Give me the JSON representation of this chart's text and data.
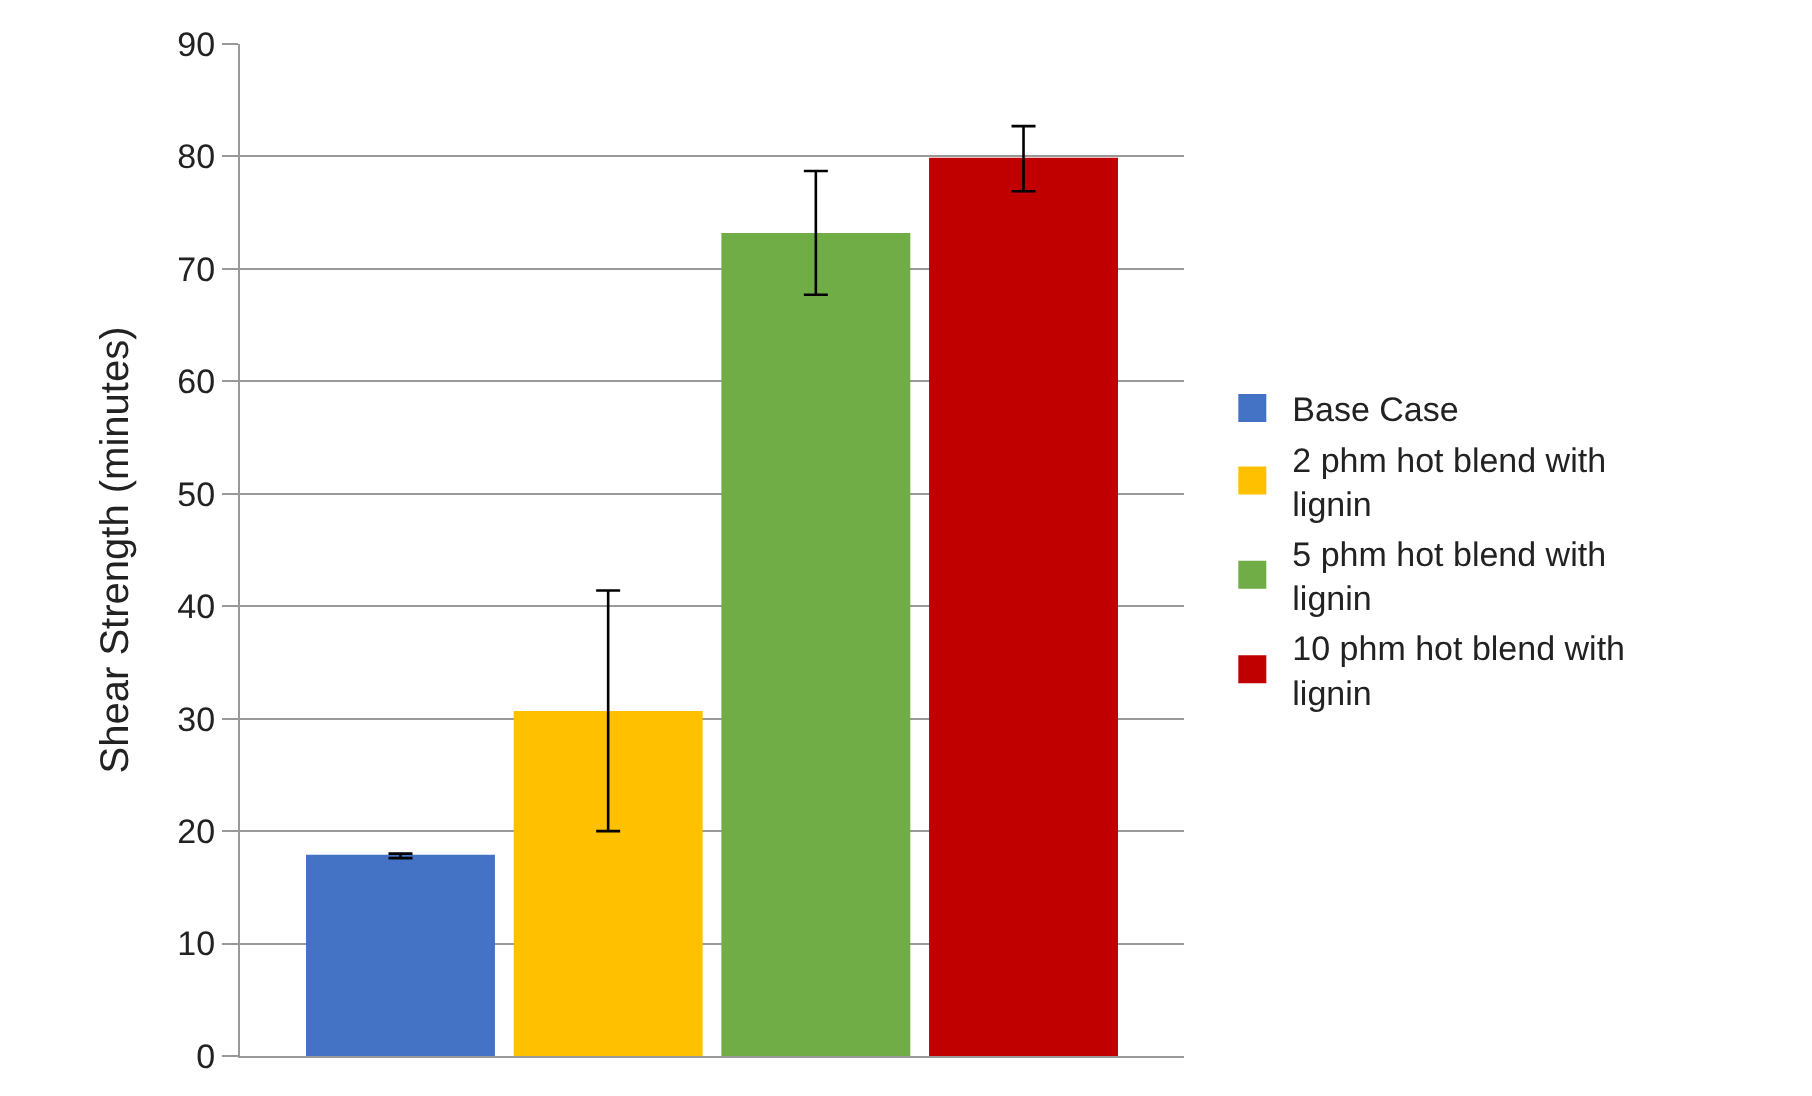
{
  "chart_data": {
    "type": "bar",
    "ylabel": "Shear Strength (minutes)",
    "categories": [
      null
    ],
    "series": [
      {
        "name": "Base Case",
        "color": "#4472c4",
        "values": [
          17.8
        ],
        "errors": [
          0.2
        ]
      },
      {
        "name": "2 phm hot blend with lignin",
        "color": "#ffc000",
        "values": [
          30.6
        ],
        "errors": [
          [
            20.0,
            41.4
          ]
        ]
      },
      {
        "name": "5 phm hot blend with lignin",
        "color": "#70ad47",
        "values": [
          73.1
        ],
        "errors": [
          [
            67.7,
            78.7
          ]
        ]
      },
      {
        "name": "10 phm hot blend with lignin",
        "color": "#c00000",
        "values": [
          79.8
        ],
        "errors": [
          [
            76.9,
            82.7
          ]
        ]
      }
    ],
    "ylim": [
      0,
      90
    ],
    "yticks": [
      0,
      10,
      20,
      30,
      40,
      50,
      60,
      70,
      80,
      90
    ],
    "grid": "y",
    "legend": "right"
  }
}
